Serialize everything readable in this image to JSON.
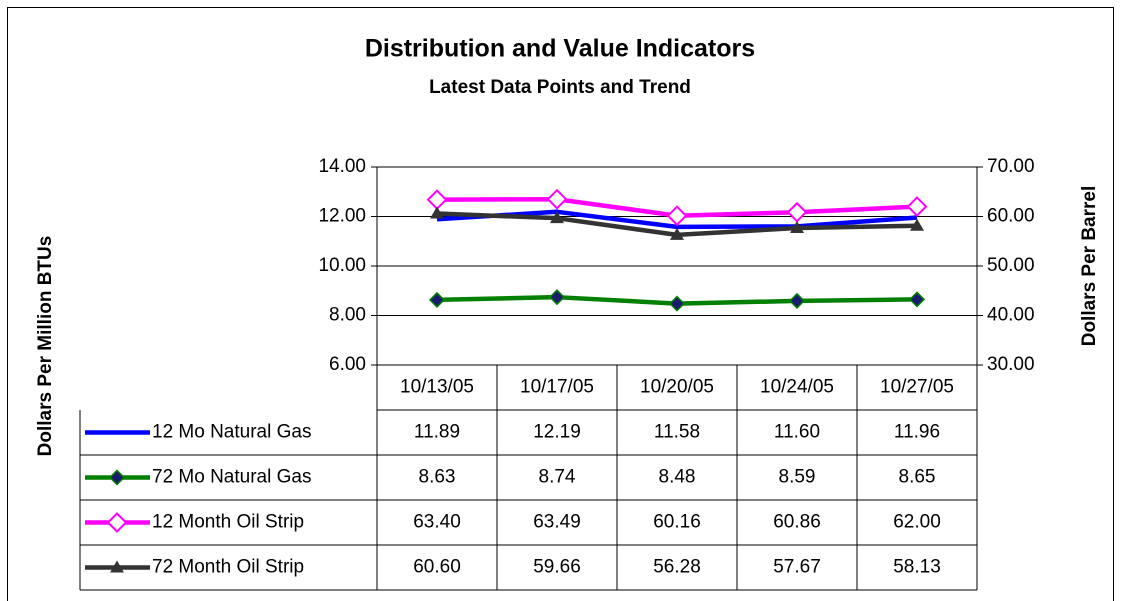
{
  "chart_data": {
    "type": "line",
    "title": "Distribution and Value Indicators",
    "subtitle": "Latest Data Points and Trend",
    "y_label": "Dollars Per Million BTUs",
    "y2_label": "Dollars Per Barrel",
    "categories": [
      "10/13/05",
      "10/17/05",
      "10/20/05",
      "10/24/05",
      "10/27/05"
    ],
    "ylim": [
      6,
      14
    ],
    "yticks": [
      {
        "value": 6,
        "label": "6.00"
      },
      {
        "value": 8,
        "label": "8.00"
      },
      {
        "value": 10,
        "label": "10.00"
      },
      {
        "value": 12,
        "label": "12.00"
      },
      {
        "value": 14,
        "label": "14.00"
      }
    ],
    "y2lim": [
      30,
      70
    ],
    "y2ticks": [
      {
        "value": 30,
        "label": "30.00"
      },
      {
        "value": 40,
        "label": "40.00"
      },
      {
        "value": 50,
        "label": "50.00"
      },
      {
        "value": 60,
        "label": "60.00"
      },
      {
        "value": 70,
        "label": "70.00"
      }
    ],
    "grid": true,
    "data_table": true,
    "series": [
      {
        "name": "12 Mo Natural Gas",
        "color": "#0000ff",
        "marker": "none",
        "values": [
          11.89,
          12.19,
          11.58,
          11.6,
          11.96
        ],
        "value_labels": [
          "11.89",
          "12.19",
          "11.58",
          "11.60",
          "11.96"
        ]
      },
      {
        "name": "72 Mo Natural Gas",
        "color": "#008000",
        "marker": "diamond",
        "marker_color": "#1a1a6e",
        "values": [
          8.63,
          8.74,
          8.48,
          8.59,
          8.65
        ],
        "value_labels": [
          "8.63",
          "8.74",
          "8.48",
          "8.59",
          "8.65"
        ]
      },
      {
        "name": "12 Month Oil Strip",
        "color": "#ff00ff",
        "marker": "hollow-diamond",
        "axis": "y2",
        "values": [
          63.4,
          63.49,
          60.16,
          60.86,
          62.0
        ],
        "value_labels": [
          "63.40",
          "63.49",
          "60.16",
          "60.86",
          "62.00"
        ]
      },
      {
        "name": "72 Month Oil Strip",
        "color": "#333333",
        "marker": "triangle",
        "axis": "y2",
        "values": [
          60.6,
          59.66,
          56.28,
          57.67,
          58.13
        ],
        "value_labels": [
          "60.60",
          "59.66",
          "56.28",
          "57.67",
          "58.13"
        ]
      }
    ]
  }
}
